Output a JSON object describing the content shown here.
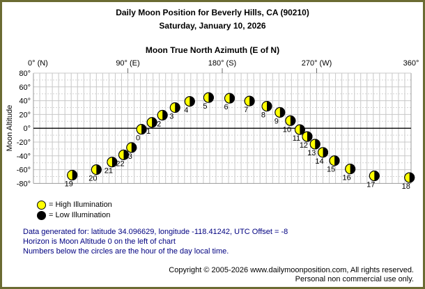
{
  "header": {
    "title": "Daily Moon Position for Beverly Hills, CA (90210)",
    "subtitle": "Saturday, January 10, 2026"
  },
  "legend": {
    "high": {
      "label": "= High Illumination",
      "color": "#ffff00"
    },
    "low": {
      "label": "= Low Illumination",
      "color": "#000000"
    }
  },
  "notes": [
    "Data generated for: latitude 34.096629, longitude -118.41242, UTC Offset = -8",
    "Horizon is Moon Altitude 0 on the left of chart",
    "Numbers below the circles are the hour of the day local time."
  ],
  "footer": [
    "Copyright © 2005-2026 www.dailymoonposition.com, All rights reserved.",
    "Personal non commercial use only."
  ],
  "colors": {
    "window_border": "#6b6b33",
    "notes_text": "#000080",
    "grid_major": "#c8c8c8",
    "grid_minor": "#d4d4d4",
    "axis_border": "#999999",
    "horizon": "#000000",
    "high_illumination": "#ffff00",
    "low_illumination": "#000000"
  },
  "chart_data": {
    "type": "scatter",
    "title": "Moon True North Azimuth (E of N)",
    "xlabel": "Moon True North Azimuth (E of N)",
    "ylabel": "Moon Altitude",
    "xlim": [
      0,
      360
    ],
    "ylim": [
      -80,
      80
    ],
    "grid": "vertical solid every 6° azimuth; horizontal solid every 20° altitude with dashed minor every 10°; bold black horizon line at altitude 0",
    "legend_position": "below chart, left",
    "marker": "circle, left half yellow (lit) / right half black (dark), hour number printed below-left of circle",
    "x_ticks": [
      {
        "azimuth": 0,
        "label": "0° (N)"
      },
      {
        "azimuth": 90,
        "label": "90° (E)"
      },
      {
        "azimuth": 180,
        "label": "180° (S)"
      },
      {
        "azimuth": 270,
        "label": "270° (W)"
      },
      {
        "azimuth": 360,
        "label": "360°"
      }
    ],
    "y_ticks": [
      {
        "value": 80,
        "label": "80°"
      },
      {
        "value": 60,
        "label": "60°"
      },
      {
        "value": 40,
        "label": "40°"
      },
      {
        "value": 20,
        "label": "20°"
      },
      {
        "value": 0,
        "label": "0°"
      },
      {
        "value": -20,
        "label": "-20°"
      },
      {
        "value": -40,
        "label": "-40°"
      },
      {
        "value": -60,
        "label": "-60°"
      },
      {
        "value": -80,
        "label": "-80°"
      }
    ],
    "points": [
      {
        "hour": 0,
        "azimuth": 103,
        "altitude": -1.5
      },
      {
        "hour": 1,
        "azimuth": 113,
        "altitude": 8.5
      },
      {
        "hour": 2,
        "azimuth": 123,
        "altitude": 19
      },
      {
        "hour": 3,
        "azimuth": 135,
        "altitude": 30
      },
      {
        "hour": 4,
        "azimuth": 149,
        "altitude": 39
      },
      {
        "hour": 5,
        "azimuth": 167,
        "altitude": 44.5
      },
      {
        "hour": 6,
        "azimuth": 187,
        "altitude": 43.5
      },
      {
        "hour": 7,
        "azimuth": 206,
        "altitude": 39.5
      },
      {
        "hour": 8,
        "azimuth": 222.5,
        "altitude": 32
      },
      {
        "hour": 9,
        "azimuth": 235,
        "altitude": 23
      },
      {
        "hour": 10,
        "azimuth": 245,
        "altitude": 11
      },
      {
        "hour": 11,
        "azimuth": 254,
        "altitude": -2
      },
      {
        "hour": 12,
        "azimuth": 261,
        "altitude": -12
      },
      {
        "hour": 13,
        "azimuth": 268.5,
        "altitude": -23
      },
      {
        "hour": 14,
        "azimuth": 276,
        "altitude": -35
      },
      {
        "hour": 15,
        "azimuth": 287,
        "altitude": -47
      },
      {
        "hour": 16,
        "azimuth": 302,
        "altitude": -59
      },
      {
        "hour": 17,
        "azimuth": 325,
        "altitude": -69
      },
      {
        "hour": 18,
        "azimuth": 358.5,
        "altitude": -71.5
      },
      {
        "hour": 19,
        "azimuth": 37,
        "altitude": -68
      },
      {
        "hour": 20,
        "azimuth": 60,
        "altitude": -60
      },
      {
        "hour": 21,
        "azimuth": 75,
        "altitude": -49
      },
      {
        "hour": 22,
        "azimuth": 86,
        "altitude": -38.5
      },
      {
        "hour": 23,
        "azimuth": 93.5,
        "altitude": -28
      }
    ]
  }
}
